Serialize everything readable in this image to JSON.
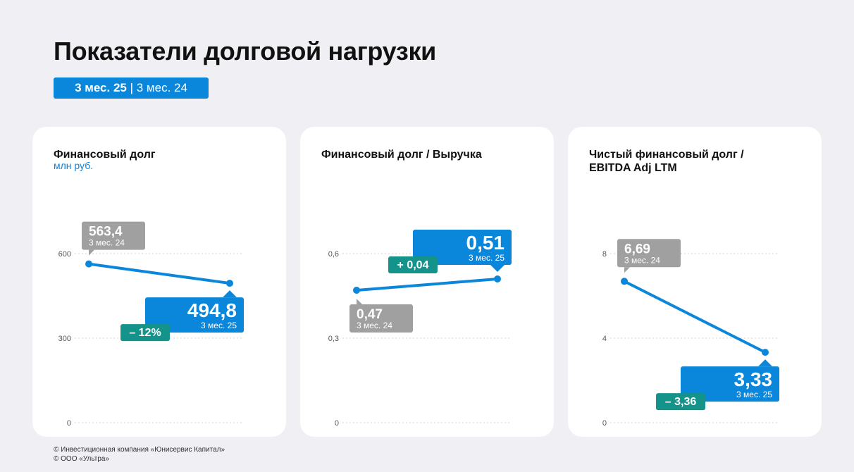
{
  "page": {
    "title": "Показатели долговой нагрузки",
    "period_active": "3 мес. 25",
    "period_separator": "|",
    "period_other": "3 мес. 24",
    "footer": [
      "© Инвестиционная компания «Юнисервис Капитал»",
      "© ООО «Ультра»"
    ]
  },
  "colors": {
    "accent": "#0a86db",
    "previous": "#a0a0a0",
    "delta": "#14938a",
    "background": "#efeff4",
    "card": "#ffffff"
  },
  "chart_data": [
    {
      "type": "line",
      "title": [
        "Финансовый долг"
      ],
      "unit": "млн руб.",
      "x": [
        "3 мес. 24",
        "3 мес. 25"
      ],
      "values": [
        563.4,
        494.8
      ],
      "value_labels": [
        "563,4",
        "494,8"
      ],
      "period_labels": [
        "3 мес. 24",
        "3 мес. 25"
      ],
      "delta": "– 12%",
      "yticks": [
        0,
        300,
        600
      ],
      "ytick_labels": [
        "0",
        "300",
        "600"
      ],
      "ylim": [
        0,
        600
      ],
      "grid": true
    },
    {
      "type": "line",
      "title": [
        "Финансовый долг / Выручка"
      ],
      "unit": "",
      "x": [
        "3 мес. 24",
        "3 мес. 25"
      ],
      "values": [
        0.47,
        0.51
      ],
      "value_labels": [
        "0,47",
        "0,51"
      ],
      "period_labels": [
        "3 мес. 24",
        "3 мес. 25"
      ],
      "delta": "+ 0,04",
      "yticks": [
        0,
        0.3,
        0.6
      ],
      "ytick_labels": [
        "0",
        "0,3",
        "0,6"
      ],
      "ylim": [
        0,
        0.6
      ],
      "grid": true
    },
    {
      "type": "line",
      "title": [
        "Чистый финансовый долг /",
        "EBITDA Adj LTM"
      ],
      "unit": "",
      "x": [
        "3 мес. 24",
        "3 мес. 25"
      ],
      "values": [
        6.69,
        3.33
      ],
      "value_labels": [
        "6,69",
        "3,33"
      ],
      "period_labels": [
        "3 мес. 24",
        "3 мес. 25"
      ],
      "delta": "– 3,36",
      "yticks": [
        0,
        4,
        8
      ],
      "ytick_labels": [
        "0",
        "4",
        "8"
      ],
      "ylim": [
        0,
        8
      ],
      "grid": true
    }
  ]
}
